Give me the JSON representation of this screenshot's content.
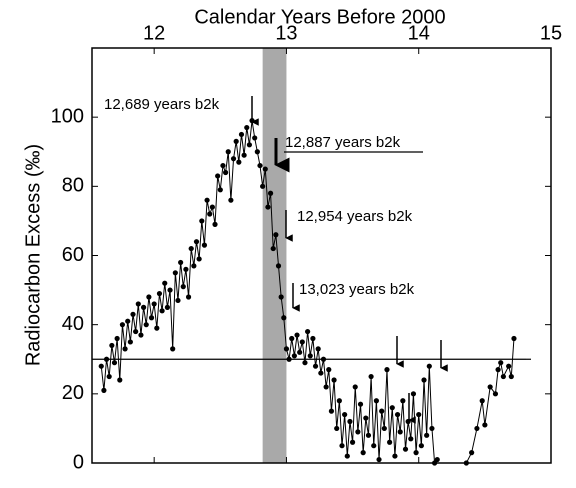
{
  "chart_data": {
    "type": "line",
    "title": "Calendar Years Before 2000",
    "y_label": "Radiocarbon Excess  (‰)",
    "annotations": [
      "12,689 years b2k",
      "12,887 years b2k",
      "12,954 years b2k",
      "13,023 years b2k"
    ],
    "xlim": [
      11.53,
      15
    ],
    "xticks": [
      12,
      13,
      14,
      15
    ],
    "ylim": [
      0,
      120
    ],
    "yticks": [
      0,
      20,
      40,
      60,
      80,
      100
    ],
    "reference_line": 30,
    "shaded_span": [
      12.82,
      13.0
    ],
    "series": [
      {
        "color": "#000000",
        "x": [
          11.6,
          11.62,
          11.64,
          11.66,
          11.68,
          11.7,
          11.72,
          11.74,
          11.76,
          11.78,
          11.8,
          11.82,
          11.84,
          11.86,
          11.88,
          11.9,
          11.92,
          11.94,
          11.96,
          11.98,
          12.0,
          12.02,
          12.04,
          12.06,
          12.08,
          12.1,
          12.12,
          12.14,
          12.16,
          12.18,
          12.2,
          12.22,
          12.24,
          12.26,
          12.28,
          12.3,
          12.32,
          12.34,
          12.36,
          12.38,
          12.4,
          12.42,
          12.44,
          12.46,
          12.48,
          12.5,
          12.52,
          12.54,
          12.56,
          12.58,
          12.6,
          12.62,
          12.64,
          12.66,
          12.68,
          12.7,
          12.72,
          12.74,
          12.76,
          12.78,
          12.8,
          12.82,
          12.84,
          12.86,
          12.88,
          12.9,
          12.92,
          12.94,
          12.96,
          12.98,
          13.0,
          13.02,
          13.04,
          13.06,
          13.08,
          13.1,
          13.12,
          13.14,
          13.16,
          13.18,
          13.2,
          13.22,
          13.24,
          13.26,
          13.28,
          13.3,
          13.32,
          13.34,
          13.36,
          13.38,
          13.4,
          13.42,
          13.44,
          13.46,
          13.48,
          13.5,
          13.52,
          13.54,
          13.56,
          13.58,
          13.6,
          13.62,
          13.64,
          13.66,
          13.68,
          13.7,
          13.72,
          13.74,
          13.76,
          13.78,
          13.8,
          13.82,
          13.84,
          13.86,
          13.88,
          13.9,
          13.92,
          13.94,
          13.96,
          13.98,
          14.0,
          14.02,
          14.04,
          14.06,
          14.08,
          14.1,
          14.12,
          14.14,
          14.25,
          14.36,
          14.4,
          14.44,
          14.48,
          14.5,
          14.54,
          14.58,
          14.6,
          14.62,
          14.64,
          14.68,
          14.7,
          14.72
        ],
        "values": [
          28,
          21,
          30,
          25,
          34,
          29,
          36,
          24,
          40,
          33,
          41,
          35,
          43,
          38,
          46,
          37,
          45,
          40,
          48,
          42,
          46,
          39,
          49,
          44,
          52,
          45,
          50,
          33,
          55,
          47,
          58,
          51,
          56,
          48,
          62,
          57,
          64,
          59,
          70,
          63,
          76,
          72,
          74,
          69,
          83,
          79,
          86,
          84,
          90,
          76,
          88,
          93,
          87,
          95,
          89,
          97,
          92,
          99,
          94,
          90,
          86,
          80,
          85,
          74,
          78,
          62,
          66,
          57,
          48,
          42,
          33,
          30,
          36,
          31,
          37,
          32,
          35,
          29,
          38,
          31,
          36,
          28,
          33,
          26,
          30,
          22,
          27,
          15,
          24,
          10,
          18,
          5,
          14,
          2,
          12,
          6,
          22,
          9,
          17,
          3,
          13,
          8,
          25,
          5,
          18,
          1,
          15,
          10,
          27,
          6,
          16,
          2,
          14,
          9,
          18,
          4,
          12,
          7,
          20,
          3,
          14,
          5,
          24,
          8,
          28,
          10,
          0,
          1,
          null,
          0,
          3,
          10,
          18,
          11,
          22,
          20,
          27,
          29,
          25,
          28,
          25,
          36
        ]
      }
    ]
  }
}
